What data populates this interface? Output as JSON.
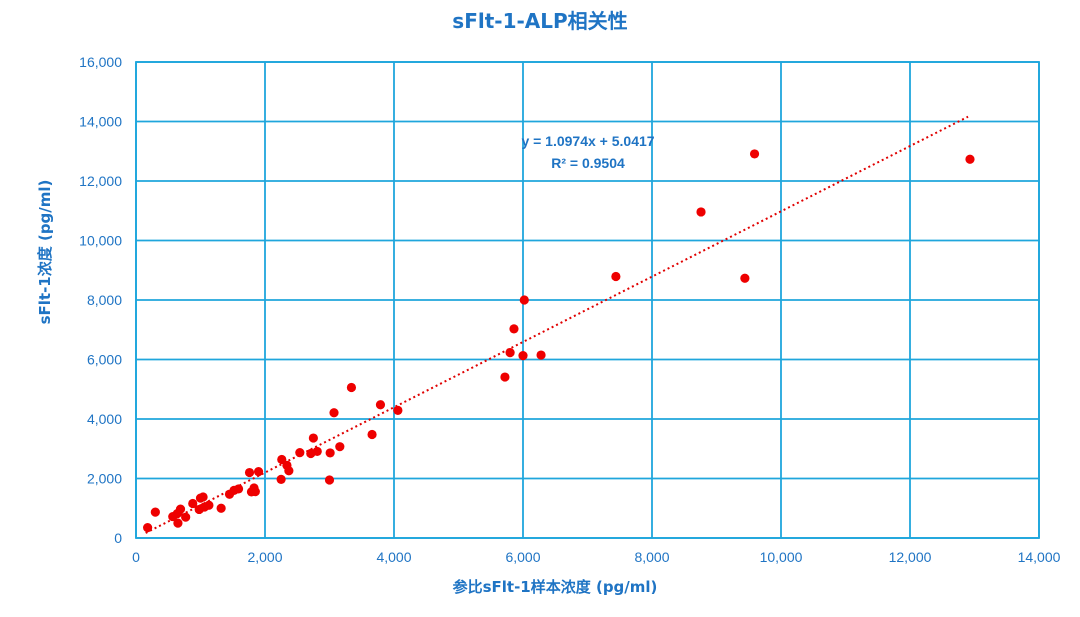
{
  "chart_data": {
    "type": "scatter",
    "title": "sFlt-1-ALP相关性",
    "xlabel": "参比sFlt-1样本浓度 (pg/ml)",
    "ylabel": "sFlt-1浓度 (pg/ml)",
    "xlim": [
      0,
      14000
    ],
    "ylim": [
      0,
      16000
    ],
    "x_ticks": [
      0,
      2000,
      4000,
      6000,
      8000,
      10000,
      12000,
      14000
    ],
    "x_tick_labels": [
      "0",
      "2,000",
      "4,000",
      "6,000",
      "8,000",
      "10,000",
      "12,000",
      "14,000"
    ],
    "y_ticks": [
      0,
      2000,
      4000,
      6000,
      8000,
      10000,
      12000,
      14000,
      16000
    ],
    "y_tick_labels": [
      "0",
      "2,000",
      "4,000",
      "6,000",
      "8,000",
      "10,000",
      "12,000",
      "14,000",
      "16,000"
    ],
    "grid": true,
    "point_color": "#ee0000",
    "axis_color": "#1f74c4",
    "grid_color": "#1fa6dc",
    "trendline": {
      "slope": 1.0974,
      "intercept": 5.0417,
      "x_range": [
        150,
        12900
      ],
      "equation": "y = 1.0974x + 5.0417",
      "r_squared": "R² = 0.9504"
    },
    "points": [
      [
        180,
        350
      ],
      [
        300,
        870
      ],
      [
        570,
        720
      ],
      [
        640,
        820
      ],
      [
        650,
        500
      ],
      [
        690,
        970
      ],
      [
        770,
        700
      ],
      [
        880,
        1160
      ],
      [
        980,
        960
      ],
      [
        1000,
        1340
      ],
      [
        1040,
        1380
      ],
      [
        1060,
        1040
      ],
      [
        1130,
        1100
      ],
      [
        1320,
        1000
      ],
      [
        1450,
        1470
      ],
      [
        1520,
        1600
      ],
      [
        1590,
        1650
      ],
      [
        1760,
        2200
      ],
      [
        1790,
        1550
      ],
      [
        1830,
        1680
      ],
      [
        1850,
        1560
      ],
      [
        1900,
        2230
      ],
      [
        2250,
        1970
      ],
      [
        2260,
        2640
      ],
      [
        2340,
        2440
      ],
      [
        2370,
        2260
      ],
      [
        2540,
        2870
      ],
      [
        2710,
        2840
      ],
      [
        2750,
        3360
      ],
      [
        2810,
        2910
      ],
      [
        3000,
        1950
      ],
      [
        3010,
        2860
      ],
      [
        3070,
        4210
      ],
      [
        3160,
        3070
      ],
      [
        3340,
        5060
      ],
      [
        3660,
        3480
      ],
      [
        3790,
        4480
      ],
      [
        4060,
        4290
      ],
      [
        5720,
        5410
      ],
      [
        5800,
        6230
      ],
      [
        5860,
        7030
      ],
      [
        6000,
        6130
      ],
      [
        6020,
        8000
      ],
      [
        6280,
        6150
      ],
      [
        7440,
        8790
      ],
      [
        8760,
        10960
      ],
      [
        9440,
        8730
      ],
      [
        9590,
        12910
      ],
      [
        12930,
        12730
      ]
    ]
  }
}
